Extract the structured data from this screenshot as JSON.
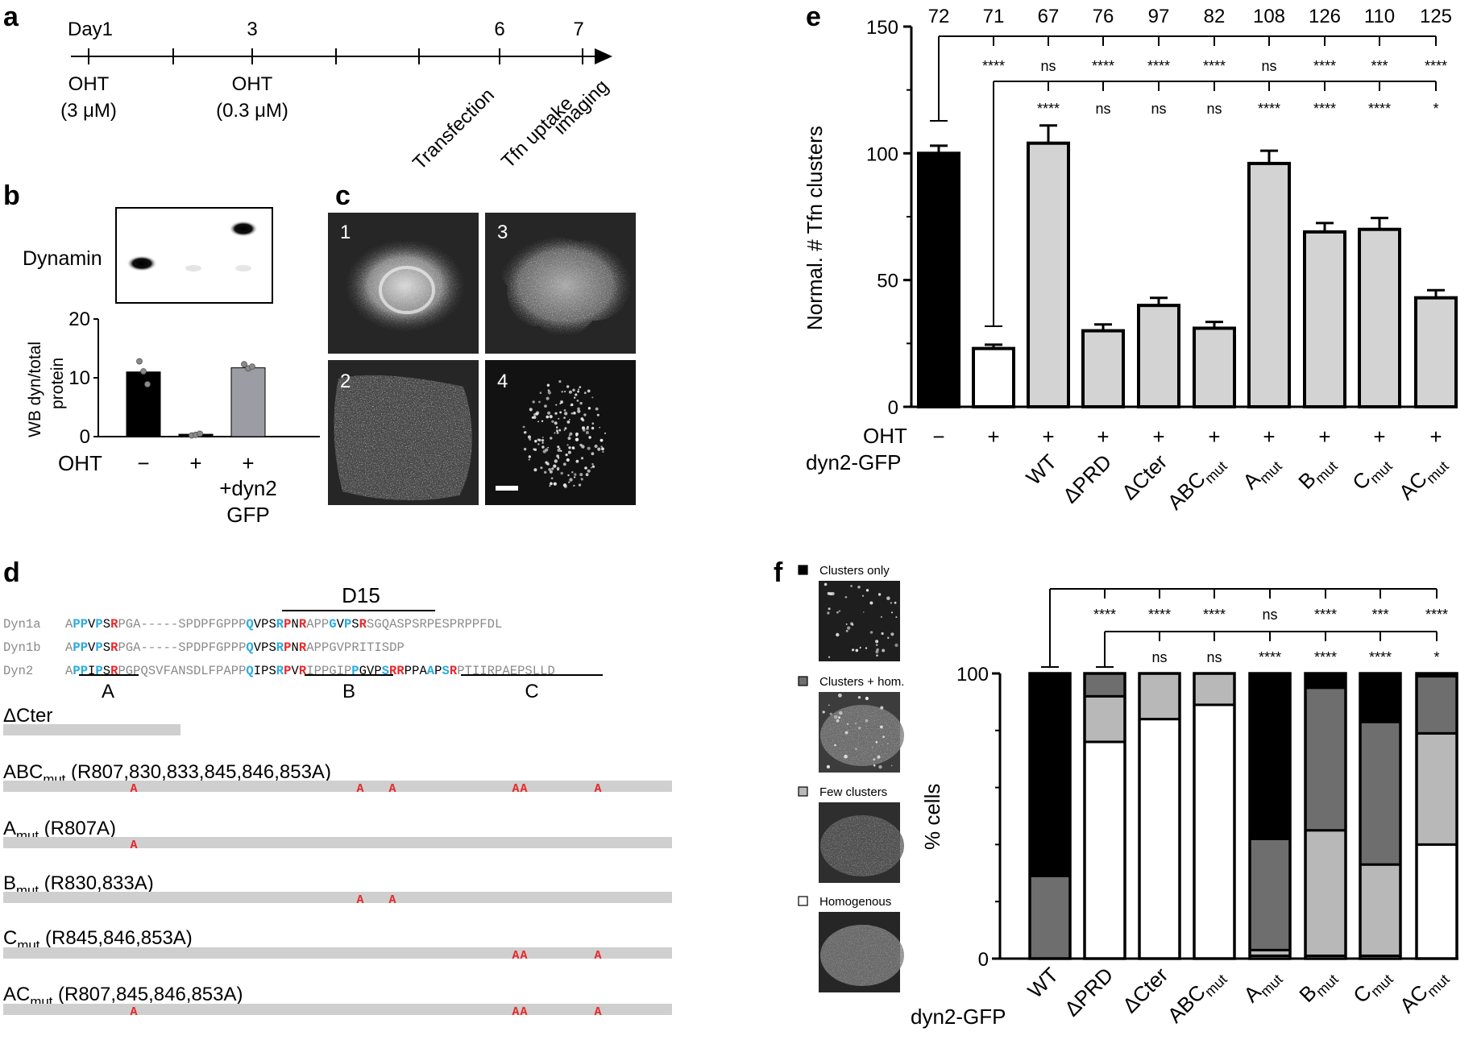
{
  "panel_labels": {
    "a": "a",
    "b": "b",
    "c": "c",
    "d": "d",
    "e": "e",
    "f": "f"
  },
  "panel_a": {
    "ticks": [
      "Day1",
      "3",
      "6",
      "7"
    ],
    "treatments": [
      {
        "line1": "OHT",
        "line2": "(3 μM)"
      },
      {
        "line1": "OHT",
        "line2": "(0.3 μM)"
      }
    ],
    "events": [
      "Transfection",
      "Tfn uptake",
      "imaging"
    ]
  },
  "panel_b": {
    "blot_label": "Dynamin",
    "ylabel_line1": "WB dyn/total",
    "ylabel_line2": "protein",
    "yticks": [
      "0",
      "10",
      "20"
    ],
    "row_label": "OHT",
    "conditions": [
      "−",
      "+",
      "+"
    ],
    "condition_extra_line1": "+dyn2",
    "condition_extra_line2": "GFP",
    "chart_data": {
      "type": "bar",
      "categories": [
        "−",
        "+",
        "+ +dyn2 GFP"
      ],
      "values": [
        11,
        0.4,
        11.7
      ],
      "points": [
        [
          12.8,
          11.1,
          8.9
        ],
        [
          0.2,
          0.3,
          0.5
        ],
        [
          12.3,
          11.6,
          11.9
        ]
      ],
      "ylim": [
        0,
        20
      ],
      "ylabel": "WB dyn/total protein",
      "colors": [
        "#000000",
        "#000000",
        "#9c9ca4"
      ]
    }
  },
  "panel_c": {
    "image_labels": [
      "1",
      "3",
      "2",
      "4"
    ]
  },
  "panel_d": {
    "motif_label": "D15",
    "sequences": [
      {
        "name": "Dyn1a",
        "seq": "APPVPSRPGA-----SPDPFGPPPQVPSRPNRAPPGVPSRSGQASPSRPESPRPPFDL"
      },
      {
        "name": "Dyn1b",
        "seq": "APPVPSRPGA-----SPDPFGPPPQVPSRPNRAPPGVPRITISDP"
      },
      {
        "name": "Dyn2",
        "seq": "APPIPSRPGPQSVFANSDLFPAPPQIPSRPVRIPPGIPPGVPSRRPPAAPSRPTIIRPAEPSLLD"
      }
    ],
    "region_labels": [
      "A",
      "B",
      "C"
    ],
    "constructs": [
      {
        "name": "ΔCter",
        "sub": "",
        "rest": ""
      },
      {
        "name": "ABC",
        "sub": "mut",
        "rest": " (R807,830,833,845,846,853A)",
        "marks": "A"
      },
      {
        "name": "A",
        "sub": "mut",
        "rest": " (R807A)",
        "marks": "A"
      },
      {
        "name": "B",
        "sub": "mut",
        "rest": " (R830,833A)",
        "marks": "A"
      },
      {
        "name": "C",
        "sub": "mut",
        "rest": " (R845,846,853A)",
        "marks": "A"
      },
      {
        "name": "AC",
        "sub": "mut",
        "rest": " (R807,845,846,853A)",
        "marks": "A"
      }
    ]
  },
  "panel_e": {
    "counts": [
      "72",
      "71",
      "67",
      "76",
      "97",
      "82",
      "108",
      "126",
      "110",
      "125"
    ],
    "sig_row1": [
      "****",
      "ns",
      "****",
      "****",
      "****",
      "ns",
      "****",
      "***",
      "****"
    ],
    "sig_row2": [
      "****",
      "ns",
      "ns",
      "ns",
      "****",
      "****",
      "****",
      "*"
    ],
    "ylabel": "Normal. # Tfn clusters",
    "yticks": [
      "0",
      "50",
      "100",
      "150"
    ],
    "oht_label": "OHT",
    "oht_values": [
      "−",
      "+",
      "+",
      "+",
      "+",
      "+",
      "+",
      "+",
      "+",
      "+"
    ],
    "dyn_label": "dyn2-GFP",
    "dyn_values": [
      {
        "main": "WT",
        "sub": ""
      },
      {
        "main": "ΔPRD",
        "sub": ""
      },
      {
        "main": "ΔCter",
        "sub": ""
      },
      {
        "main": "ABC",
        "sub": "mut"
      },
      {
        "main": "A",
        "sub": "mut"
      },
      {
        "main": "B",
        "sub": "mut"
      },
      {
        "main": "C",
        "sub": "mut"
      },
      {
        "main": "AC",
        "sub": "mut"
      }
    ],
    "chart_data": {
      "type": "bar",
      "categories": [
        "OHT − ",
        "OHT +",
        "WT",
        "ΔPRD",
        "ΔCter",
        "ABCmut",
        "Amut",
        "Bmut",
        "Cmut",
        "ACmut"
      ],
      "values": [
        100,
        23,
        104,
        30,
        40,
        31,
        96,
        69,
        70,
        43
      ],
      "errors": [
        3,
        1.5,
        7,
        2.5,
        3,
        2.5,
        5,
        3.5,
        4.5,
        3
      ],
      "ylim": [
        0,
        150
      ],
      "ylabel": "Normal. # Tfn clusters",
      "colors": [
        "#000000",
        "#ffffff",
        "#d3d3d3"
      ]
    }
  },
  "panel_f": {
    "legend": [
      "Clusters only",
      "Clusters + hom.",
      "Few clusters",
      "Homogenous"
    ],
    "legend_colors": [
      "#000000",
      "#6e6e6e",
      "#b8b8b8",
      "#ffffff"
    ],
    "sig_row1": [
      "****",
      "****",
      "****",
      "ns",
      "****",
      "***",
      "****"
    ],
    "sig_row2": [
      "ns",
      "ns",
      "****",
      "****",
      "****",
      "*"
    ],
    "ylabel": "% cells",
    "yticks": [
      "0",
      "100"
    ],
    "xlabel": "dyn2-GFP",
    "categories": [
      {
        "main": "WT",
        "sub": ""
      },
      {
        "main": "ΔPRD",
        "sub": ""
      },
      {
        "main": "ΔCter",
        "sub": ""
      },
      {
        "main": "ABC",
        "sub": "mut"
      },
      {
        "main": "A",
        "sub": "mut"
      },
      {
        "main": "B",
        "sub": "mut"
      },
      {
        "main": "C",
        "sub": "mut"
      },
      {
        "main": "AC",
        "sub": "mut"
      }
    ],
    "chart_data": {
      "type": "bar",
      "stacked": true,
      "categories": [
        "WT",
        "ΔPRD",
        "ΔCter",
        "ABCmut",
        "Amut",
        "Bmut",
        "Cmut",
        "ACmut"
      ],
      "series": [
        {
          "name": "Homogenous",
          "values": [
            0,
            76,
            84,
            89,
            1,
            1,
            1,
            40
          ]
        },
        {
          "name": "Few clusters",
          "values": [
            0,
            16,
            16,
            11,
            2,
            44,
            32,
            39
          ]
        },
        {
          "name": "Clusters + hom.",
          "values": [
            29,
            8,
            0,
            0,
            39,
            50,
            50,
            20
          ]
        },
        {
          "name": "Clusters only",
          "values": [
            71,
            0,
            0,
            0,
            58,
            5,
            17,
            1
          ]
        }
      ],
      "ylim": [
        0,
        100
      ],
      "ylabel": "% cells"
    }
  }
}
